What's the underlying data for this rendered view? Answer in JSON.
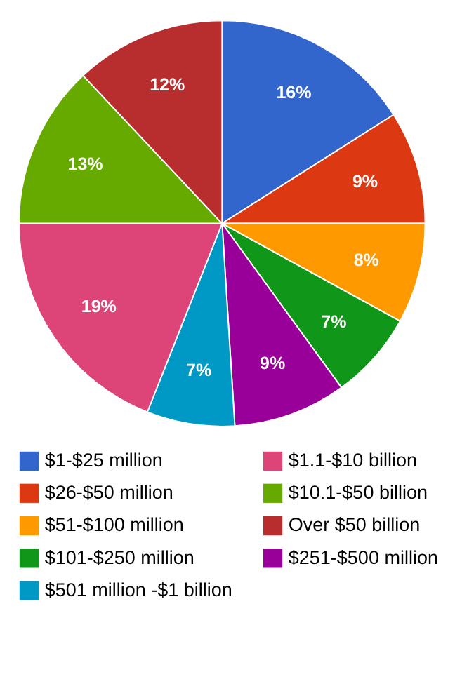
{
  "chart_data": {
    "type": "pie",
    "legend": "bottom",
    "categories": [
      "$1-$25 million",
      "$26-$50 million",
      "$51-$100 million",
      "$101-$250 million",
      "$251-$500 million",
      "$501 million -$1 billion",
      "$1.1-$10 billion",
      "$10.1-$50 billion",
      "Over $50 billion"
    ],
    "values": [
      16,
      9,
      8,
      7,
      9,
      7,
      19,
      13,
      12
    ],
    "value_labels": [
      "16%",
      "9%",
      "8%",
      "7%",
      "9%",
      "7%",
      "19%",
      "13%",
      "12%"
    ],
    "colors": [
      "#3366cc",
      "#dc3912",
      "#ff9900",
      "#109618",
      "#990099",
      "#0099c6",
      "#dd4477",
      "#66aa00",
      "#b82e2e"
    ]
  }
}
